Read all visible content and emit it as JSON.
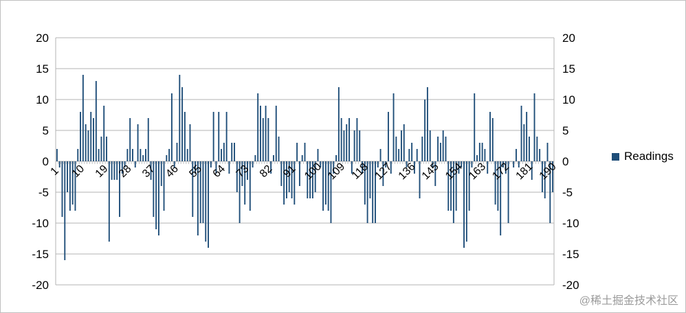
{
  "chart_data": {
    "type": "bar",
    "title": "",
    "xlabel": "",
    "ylabel": "",
    "x_start": 1,
    "x_end": 192,
    "x_tick_step": 9,
    "ylim": [
      -20,
      20
    ],
    "y_ticks": [
      -20,
      -15,
      -10,
      -5,
      0,
      5,
      10,
      15,
      20
    ],
    "y_tick_labels": [
      "-20",
      "-15",
      "-10",
      "-5",
      "0",
      "5",
      "10",
      "15",
      "20"
    ],
    "x_tick_labels": [
      "1",
      "10",
      "19",
      "28",
      "37",
      "46",
      "55",
      "64",
      "73",
      "82",
      "91",
      "100",
      "109",
      "118",
      "127",
      "136",
      "145",
      "154",
      "163",
      "172",
      "181",
      "190"
    ],
    "grid": "horizontal",
    "secondary_y_axis": true,
    "legend_position": "right",
    "series": [
      {
        "name": "Readings",
        "color": "#1f4e79",
        "values": [
          2,
          -1,
          -9,
          -16,
          -5,
          -8,
          -7,
          -8,
          2,
          8,
          14,
          6,
          5,
          8,
          7,
          13,
          2,
          4,
          9,
          4,
          -13,
          -3,
          -3,
          -3,
          -9,
          -2,
          -1,
          2,
          7,
          2,
          -1,
          6,
          2,
          1,
          2,
          7,
          -3,
          -9,
          -11,
          -12,
          -4,
          -8,
          1,
          2,
          11,
          -1,
          3,
          14,
          12,
          8,
          2,
          6,
          -9,
          -2,
          -12,
          -10,
          -10,
          -13,
          -14,
          -1,
          8,
          -2,
          8,
          2,
          3,
          8,
          -2,
          3,
          3,
          -5,
          -10,
          -4,
          -7,
          -3,
          -8,
          -1,
          1,
          11,
          9,
          7,
          9,
          7,
          -2,
          1,
          9,
          4,
          -4,
          -7,
          -6,
          -5,
          -6,
          -7,
          3,
          -4,
          1,
          3,
          -6,
          -6,
          -6,
          -5,
          2,
          -1,
          -8,
          -7,
          -8,
          -10,
          -2,
          1,
          12,
          7,
          5,
          6,
          7,
          -2,
          5,
          7,
          5,
          -2,
          -7,
          -10,
          -6,
          -10,
          -10,
          -1,
          2,
          -4,
          -1,
          8,
          -2,
          11,
          4,
          2,
          5,
          6,
          -1,
          2,
          3,
          -2,
          2,
          -6,
          4,
          10,
          12,
          5,
          -1,
          -4,
          4,
          3,
          5,
          4,
          -8,
          -8,
          -10,
          -8,
          -2,
          -1,
          -14,
          -13,
          -8,
          -1,
          11,
          1,
          3,
          3,
          2,
          -2,
          8,
          7,
          -7,
          -8,
          -12,
          -1,
          -2,
          -10,
          0,
          -1,
          2,
          -1,
          9,
          6,
          8,
          4,
          -3,
          11,
          4,
          2,
          -5,
          -6,
          3,
          -10,
          -5
        ]
      }
    ]
  },
  "watermark": "@稀土掘金技术社区"
}
